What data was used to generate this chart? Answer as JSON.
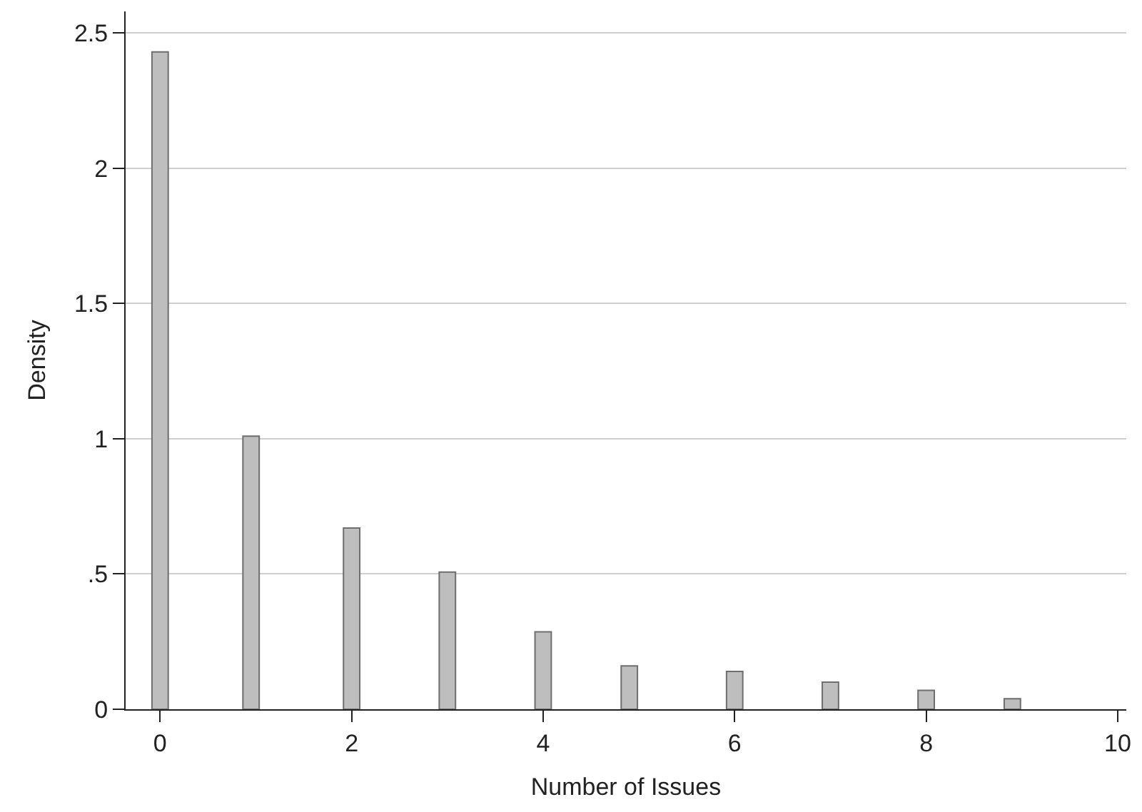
{
  "chart_data": {
    "type": "bar",
    "xlabel": "Number of Issues",
    "ylabel": "Density",
    "x": [
      0,
      0.95,
      2,
      3,
      4,
      4.9,
      6,
      7,
      8,
      8.9
    ],
    "values": [
      2.43,
      1.01,
      0.67,
      0.507,
      0.286,
      0.16,
      0.14,
      0.1,
      0.07,
      0.039
    ],
    "color": "#bebebe",
    "xlim": [
      -0.36,
      10.09
    ],
    "xticks": [
      0,
      2,
      4,
      6,
      8,
      10
    ],
    "ylim": [
      0,
      2.58
    ],
    "yticks": [
      0,
      {
        "value": 0.5,
        "label": ".5"
      },
      1,
      1.5,
      2,
      2.5
    ],
    "grid": "y",
    "legend": false
  }
}
